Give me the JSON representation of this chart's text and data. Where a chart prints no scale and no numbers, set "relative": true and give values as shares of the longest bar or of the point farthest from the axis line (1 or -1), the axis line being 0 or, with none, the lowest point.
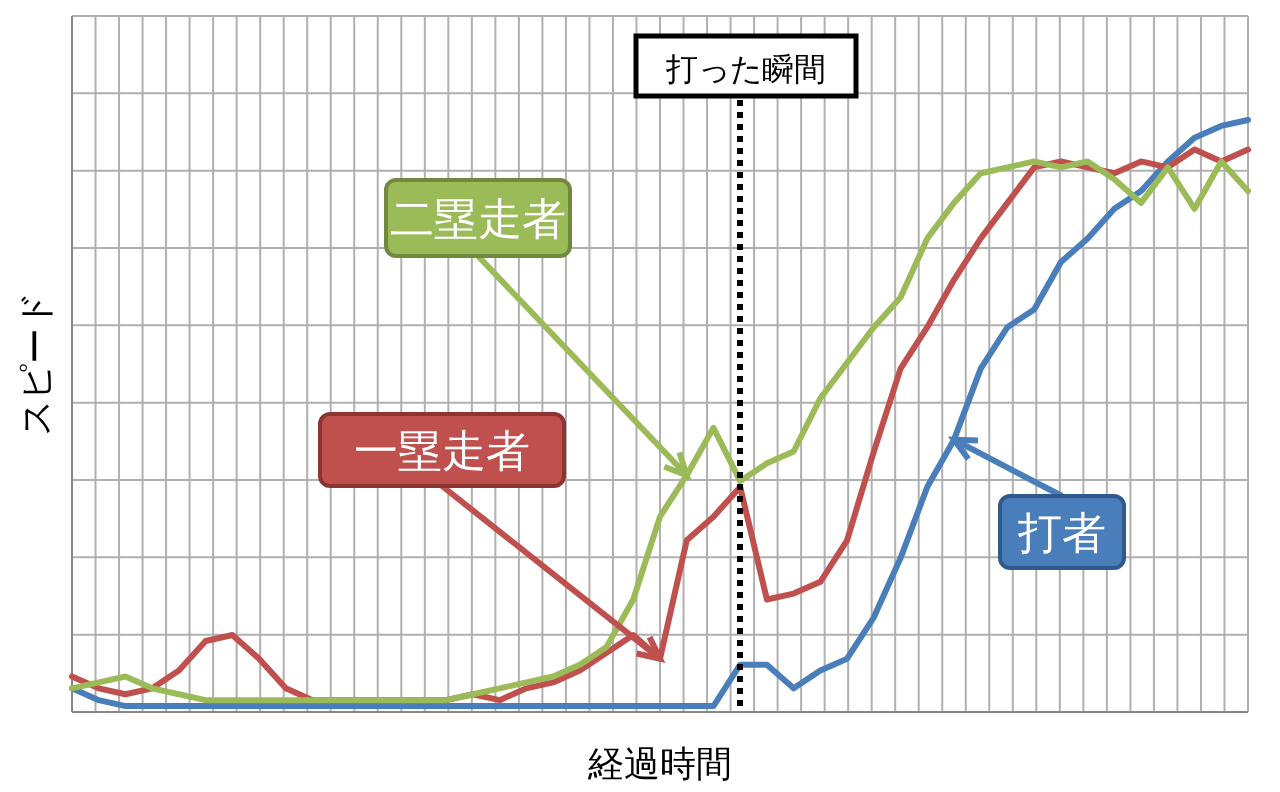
{
  "chart_data": {
    "type": "line",
    "relative": true,
    "xlabel": "経過時間",
    "ylabel": "スピード",
    "grid": true,
    "annotations": [
      "打った瞬間"
    ],
    "categories": [
      null,
      null,
      null,
      null,
      null,
      null,
      null,
      null,
      null,
      null,
      null,
      null,
      null,
      null,
      null,
      null,
      null,
      null,
      null,
      null,
      null,
      null,
      null,
      null,
      null,
      null,
      null,
      null,
      null,
      null,
      null,
      null,
      null,
      null,
      null,
      null,
      null,
      null,
      null,
      null,
      null,
      null,
      null,
      null,
      null
    ],
    "series": [
      {
        "name": "打者",
        "color": "#4a7ebb",
        "values": [
          0.04,
          0.02,
          0.01,
          0.01,
          0.01,
          0.01,
          0.01,
          0.01,
          0.01,
          0.01,
          0.01,
          0.01,
          0.01,
          0.01,
          0.01,
          0.01,
          0.01,
          0.01,
          0.01,
          0.01,
          0.01,
          0.01,
          0.01,
          0.01,
          0.01,
          0.08,
          0.08,
          0.04,
          0.07,
          0.09,
          0.16,
          0.26,
          0.38,
          0.46,
          0.58,
          0.65,
          0.68,
          0.76,
          0.8,
          0.85,
          0.88,
          0.93,
          0.97,
          0.99,
          1.0
        ]
      },
      {
        "name": "一塁走者",
        "color": "#c0504d",
        "values": [
          0.06,
          0.04,
          0.03,
          0.04,
          0.07,
          0.12,
          0.13,
          0.09,
          0.04,
          0.02,
          0.02,
          0.02,
          0.02,
          0.02,
          0.02,
          0.03,
          0.02,
          0.04,
          0.05,
          0.07,
          0.1,
          0.13,
          0.09,
          0.29,
          0.33,
          0.38,
          0.19,
          0.2,
          0.22,
          0.29,
          0.44,
          0.58,
          0.65,
          0.73,
          0.8,
          0.86,
          0.92,
          0.93,
          0.92,
          0.91,
          0.93,
          0.92,
          0.95,
          0.93,
          0.95
        ]
      },
      {
        "name": "二塁走者",
        "color": "#9bbb59",
        "values": [
          0.04,
          0.05,
          0.06,
          0.04,
          0.03,
          0.02,
          0.02,
          0.02,
          0.02,
          0.02,
          0.02,
          0.02,
          0.02,
          0.02,
          0.02,
          0.03,
          0.04,
          0.05,
          0.06,
          0.08,
          0.11,
          0.19,
          0.33,
          0.4,
          0.48,
          0.39,
          0.42,
          0.44,
          0.53,
          0.59,
          0.65,
          0.7,
          0.8,
          0.86,
          0.91,
          0.92,
          0.93,
          0.92,
          0.93,
          0.9,
          0.86,
          0.92,
          0.85,
          0.93,
          0.88
        ]
      }
    ]
  }
}
